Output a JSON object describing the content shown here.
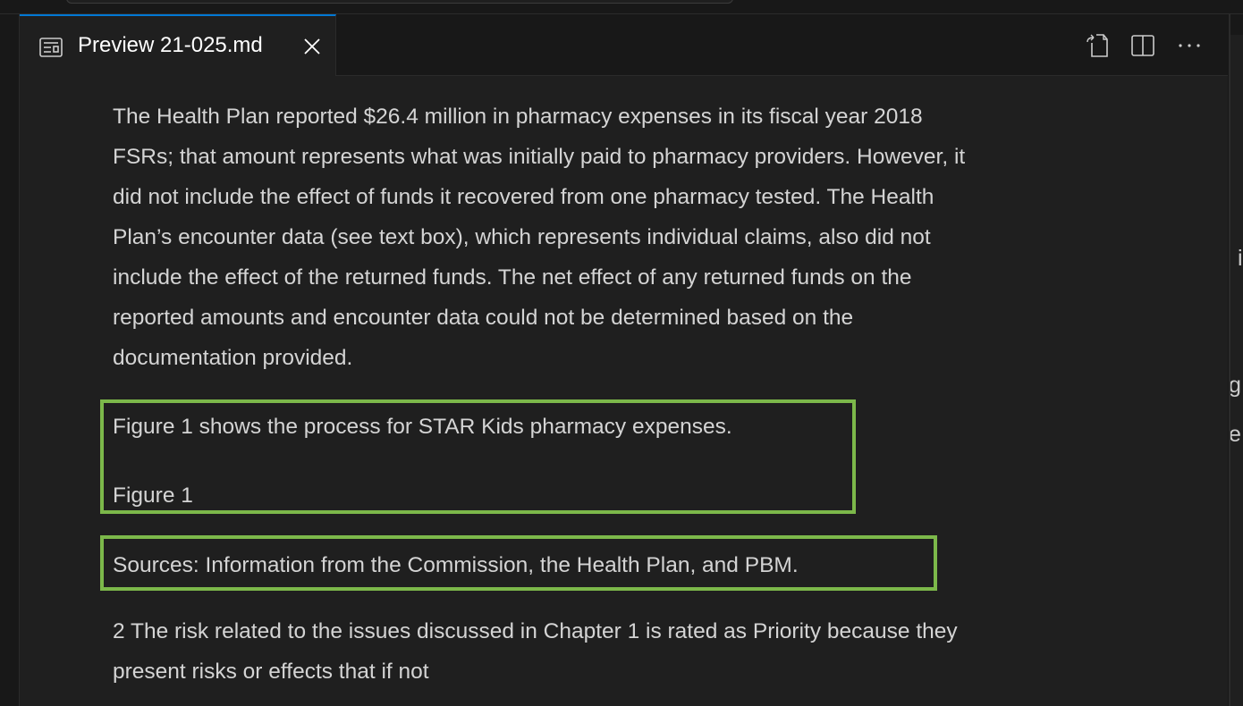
{
  "tab": {
    "icon": "preview-icon",
    "label": "Preview 21-025.md",
    "close_icon": "close-icon"
  },
  "actions": {
    "icons": [
      "open-source-icon",
      "split-editor-icon",
      "more-actions-icon"
    ]
  },
  "content": {
    "paragraph1": [
      "The Health Plan reported $26.4 million in pharmacy expenses in its fiscal year 2018",
      "FSRs; that amount represents what was initially paid to pharmacy providers. However, it",
      "did not include the effect of funds it recovered from one pharmacy tested. The Health",
      "Plan’s encounter data (see text box), which represents individual claims, also did not",
      "include the effect of the returned funds. The net effect of any returned funds on the",
      "reported amounts and encounter data could not be determined based on the",
      "documentation provided."
    ],
    "figure_intro": "Figure 1 shows the process for STAR Kids pharmacy expenses.",
    "figure_label": "Figure 1",
    "sources": "Sources: Information from the Commission, the Health Plan, and PBM.",
    "paragraph2": [
      "2 The risk related to the issues discussed in Chapter 1 is rated as Priority because they",
      "present risks or effects that if not"
    ]
  },
  "right_pane": {
    "fragments": [
      "i",
      "g",
      "e"
    ]
  },
  "colors": {
    "highlight_border": "#7cb84a",
    "active_tab_border": "#0078d4",
    "background": "#1f1f1f"
  }
}
